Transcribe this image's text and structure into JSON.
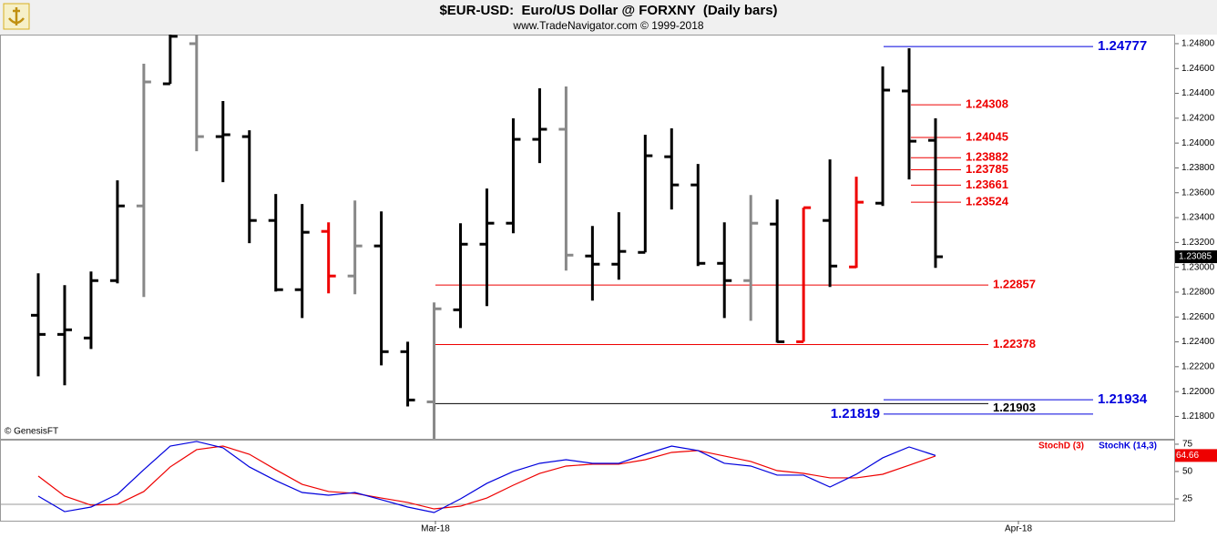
{
  "chart_data": [
    {
      "type": "ohlc",
      "title": "$EUR-USD:  Euro/US Dollar @ FORXNY  (Daily bars)",
      "subtitle": "www.TradeNavigator.com © 1999-2018",
      "source": "© GenesisFT",
      "open": [
        1.22614,
        1.2246,
        1.22431,
        1.22893,
        1.23494,
        1.24477,
        1.248,
        1.24052,
        1.24052,
        1.23377,
        1.2282,
        1.23289,
        1.2293,
        1.23172,
        1.22321,
        1.21917,
        1.22658,
        1.23186,
        1.23355,
        1.2403,
        1.24111,
        1.23091,
        1.23025,
        1.2312,
        1.2389,
        1.23663,
        1.23032,
        1.22893,
        1.23348,
        1.22401,
        1.23377,
        1.23003,
        1.23516,
        1.24419,
        1.24022
      ],
      "high": [
        1.22952,
        1.22856,
        1.22966,
        1.237,
        1.24639,
        1.24873,
        1.24873,
        1.24338,
        1.24103,
        1.2359,
        1.23509,
        1.23362,
        1.23538,
        1.2345,
        1.22401,
        1.22717,
        1.23355,
        1.23634,
        1.24199,
        1.24441,
        1.24455,
        1.23333,
        1.23443,
        1.24067,
        1.24118,
        1.23832,
        1.23362,
        1.23582,
        1.23546,
        1.2348,
        1.23868,
        1.23729,
        1.24617,
        1.24763,
        1.24199
      ],
      "low": [
        1.22123,
        1.2205,
        1.22343,
        1.22871,
        1.22761,
        1.24477,
        1.23934,
        1.23685,
        1.23194,
        1.22805,
        1.22592,
        1.2279,
        1.22783,
        1.22211,
        1.2188,
        1.2162,
        1.22511,
        1.22688,
        1.23274,
        1.23839,
        1.22974,
        1.22732,
        1.229,
        1.2312,
        1.23465,
        1.2301,
        1.22592,
        1.2257,
        1.22394,
        1.22401,
        1.22842,
        1.22996,
        1.23494,
        1.23707,
        1.22996
      ],
      "close": [
        1.2246,
        1.22497,
        1.22893,
        1.23494,
        1.24492,
        1.24859,
        1.24052,
        1.24067,
        1.23377,
        1.2282,
        1.23282,
        1.2293,
        1.23172,
        1.22321,
        1.21932,
        1.22666,
        1.23186,
        1.23355,
        1.2403,
        1.24111,
        1.23098,
        1.23025,
        1.23128,
        1.23898,
        1.23663,
        1.23032,
        1.22893,
        1.23355,
        1.22401,
        1.2348,
        1.2301,
        1.23524,
        1.24426,
        1.24015,
        1.23085
      ],
      "bar_colors": [
        "#000",
        "#000",
        "#000",
        "#000",
        "#888",
        "#000",
        "#888",
        "#000",
        "#000",
        "#000",
        "#000",
        "#e00",
        "#888",
        "#000",
        "#000",
        "#888",
        "#000",
        "#000",
        "#000",
        "#000",
        "#888",
        "#000",
        "#000",
        "#000",
        "#000",
        "#000",
        "#000",
        "#888",
        "#000",
        "#e00",
        "#000",
        "#e00",
        "#000",
        "#000",
        "#000"
      ],
      "levels": [
        {
          "value": 1.24777,
          "color": "#0000dd"
        },
        {
          "value": 1.24308,
          "color": "#e00"
        },
        {
          "value": 1.24045,
          "color": "#e00"
        },
        {
          "value": 1.23882,
          "color": "#e00"
        },
        {
          "value": 1.23785,
          "color": "#e00"
        },
        {
          "value": 1.23661,
          "color": "#e00"
        },
        {
          "value": 1.23524,
          "color": "#e00"
        },
        {
          "value": 1.22857,
          "color": "#e00"
        },
        {
          "value": 1.22378,
          "color": "#e00"
        },
        {
          "value": 1.21934,
          "color": "#0000dd"
        },
        {
          "value": 1.21903,
          "color": "#000"
        },
        {
          "value": 1.21819,
          "color": "#0000dd"
        }
      ],
      "ylim": [
        1.2162,
        1.24873
      ],
      "yticks": [
        {
          "value": 1.218,
          "label": "1.21800"
        },
        {
          "value": 1.22,
          "label": "1.22000"
        },
        {
          "value": 1.222,
          "label": "1.22200"
        },
        {
          "value": 1.224,
          "label": "1.22400"
        },
        {
          "value": 1.226,
          "label": "1.22600"
        },
        {
          "value": 1.228,
          "label": "1.22800"
        },
        {
          "value": 1.23,
          "label": "1.23000"
        },
        {
          "value": 1.232,
          "label": "1.23200"
        },
        {
          "value": 1.234,
          "label": "1.23400"
        },
        {
          "value": 1.236,
          "label": "1.23600"
        },
        {
          "value": 1.238,
          "label": "1.23800"
        },
        {
          "value": 1.24,
          "label": "1.24000"
        },
        {
          "value": 1.242,
          "label": "1.24200"
        },
        {
          "value": 1.244,
          "label": "1.24400"
        },
        {
          "value": 1.246,
          "label": "1.24600"
        },
        {
          "value": 1.248,
          "label": "1.24800"
        }
      ]
    },
    {
      "type": "line",
      "x_labels": [
        "Mar-18",
        "Apr-18"
      ],
      "series": [
        {
          "name": "StochD (3)",
          "color": "#e00",
          "values": [
            45.8,
            27.5,
            19.2,
            20,
            31.7,
            54.2,
            70,
            73.3,
            65.8,
            51.7,
            38.3,
            31.7,
            30,
            25.8,
            21.7,
            15.8,
            18.3,
            25.8,
            37.5,
            48.3,
            55,
            56.7,
            56.7,
            60.8,
            67.5,
            69.2,
            64.2,
            59.2,
            50.8,
            48.3,
            44.2,
            44.2,
            47.5,
            55.8,
            64.2
          ]
        },
        {
          "name": "StochK (14,3)",
          "color": "#0000dd",
          "values": [
            27.5,
            13.3,
            17.5,
            29.2,
            51.7,
            73.3,
            77.5,
            71.7,
            54.2,
            41.7,
            30.8,
            28.3,
            30.8,
            24.2,
            17.5,
            12.5,
            25,
            39.2,
            50,
            57.5,
            60.8,
            57.5,
            57.5,
            65.8,
            73.3,
            69.2,
            57.5,
            55,
            46.7,
            46.7,
            35.8,
            47.5,
            62.5,
            72.5,
            64.66
          ]
        }
      ],
      "ylim": [
        5,
        78.3
      ],
      "yticks": [
        25,
        50,
        75
      ]
    }
  ]
}
